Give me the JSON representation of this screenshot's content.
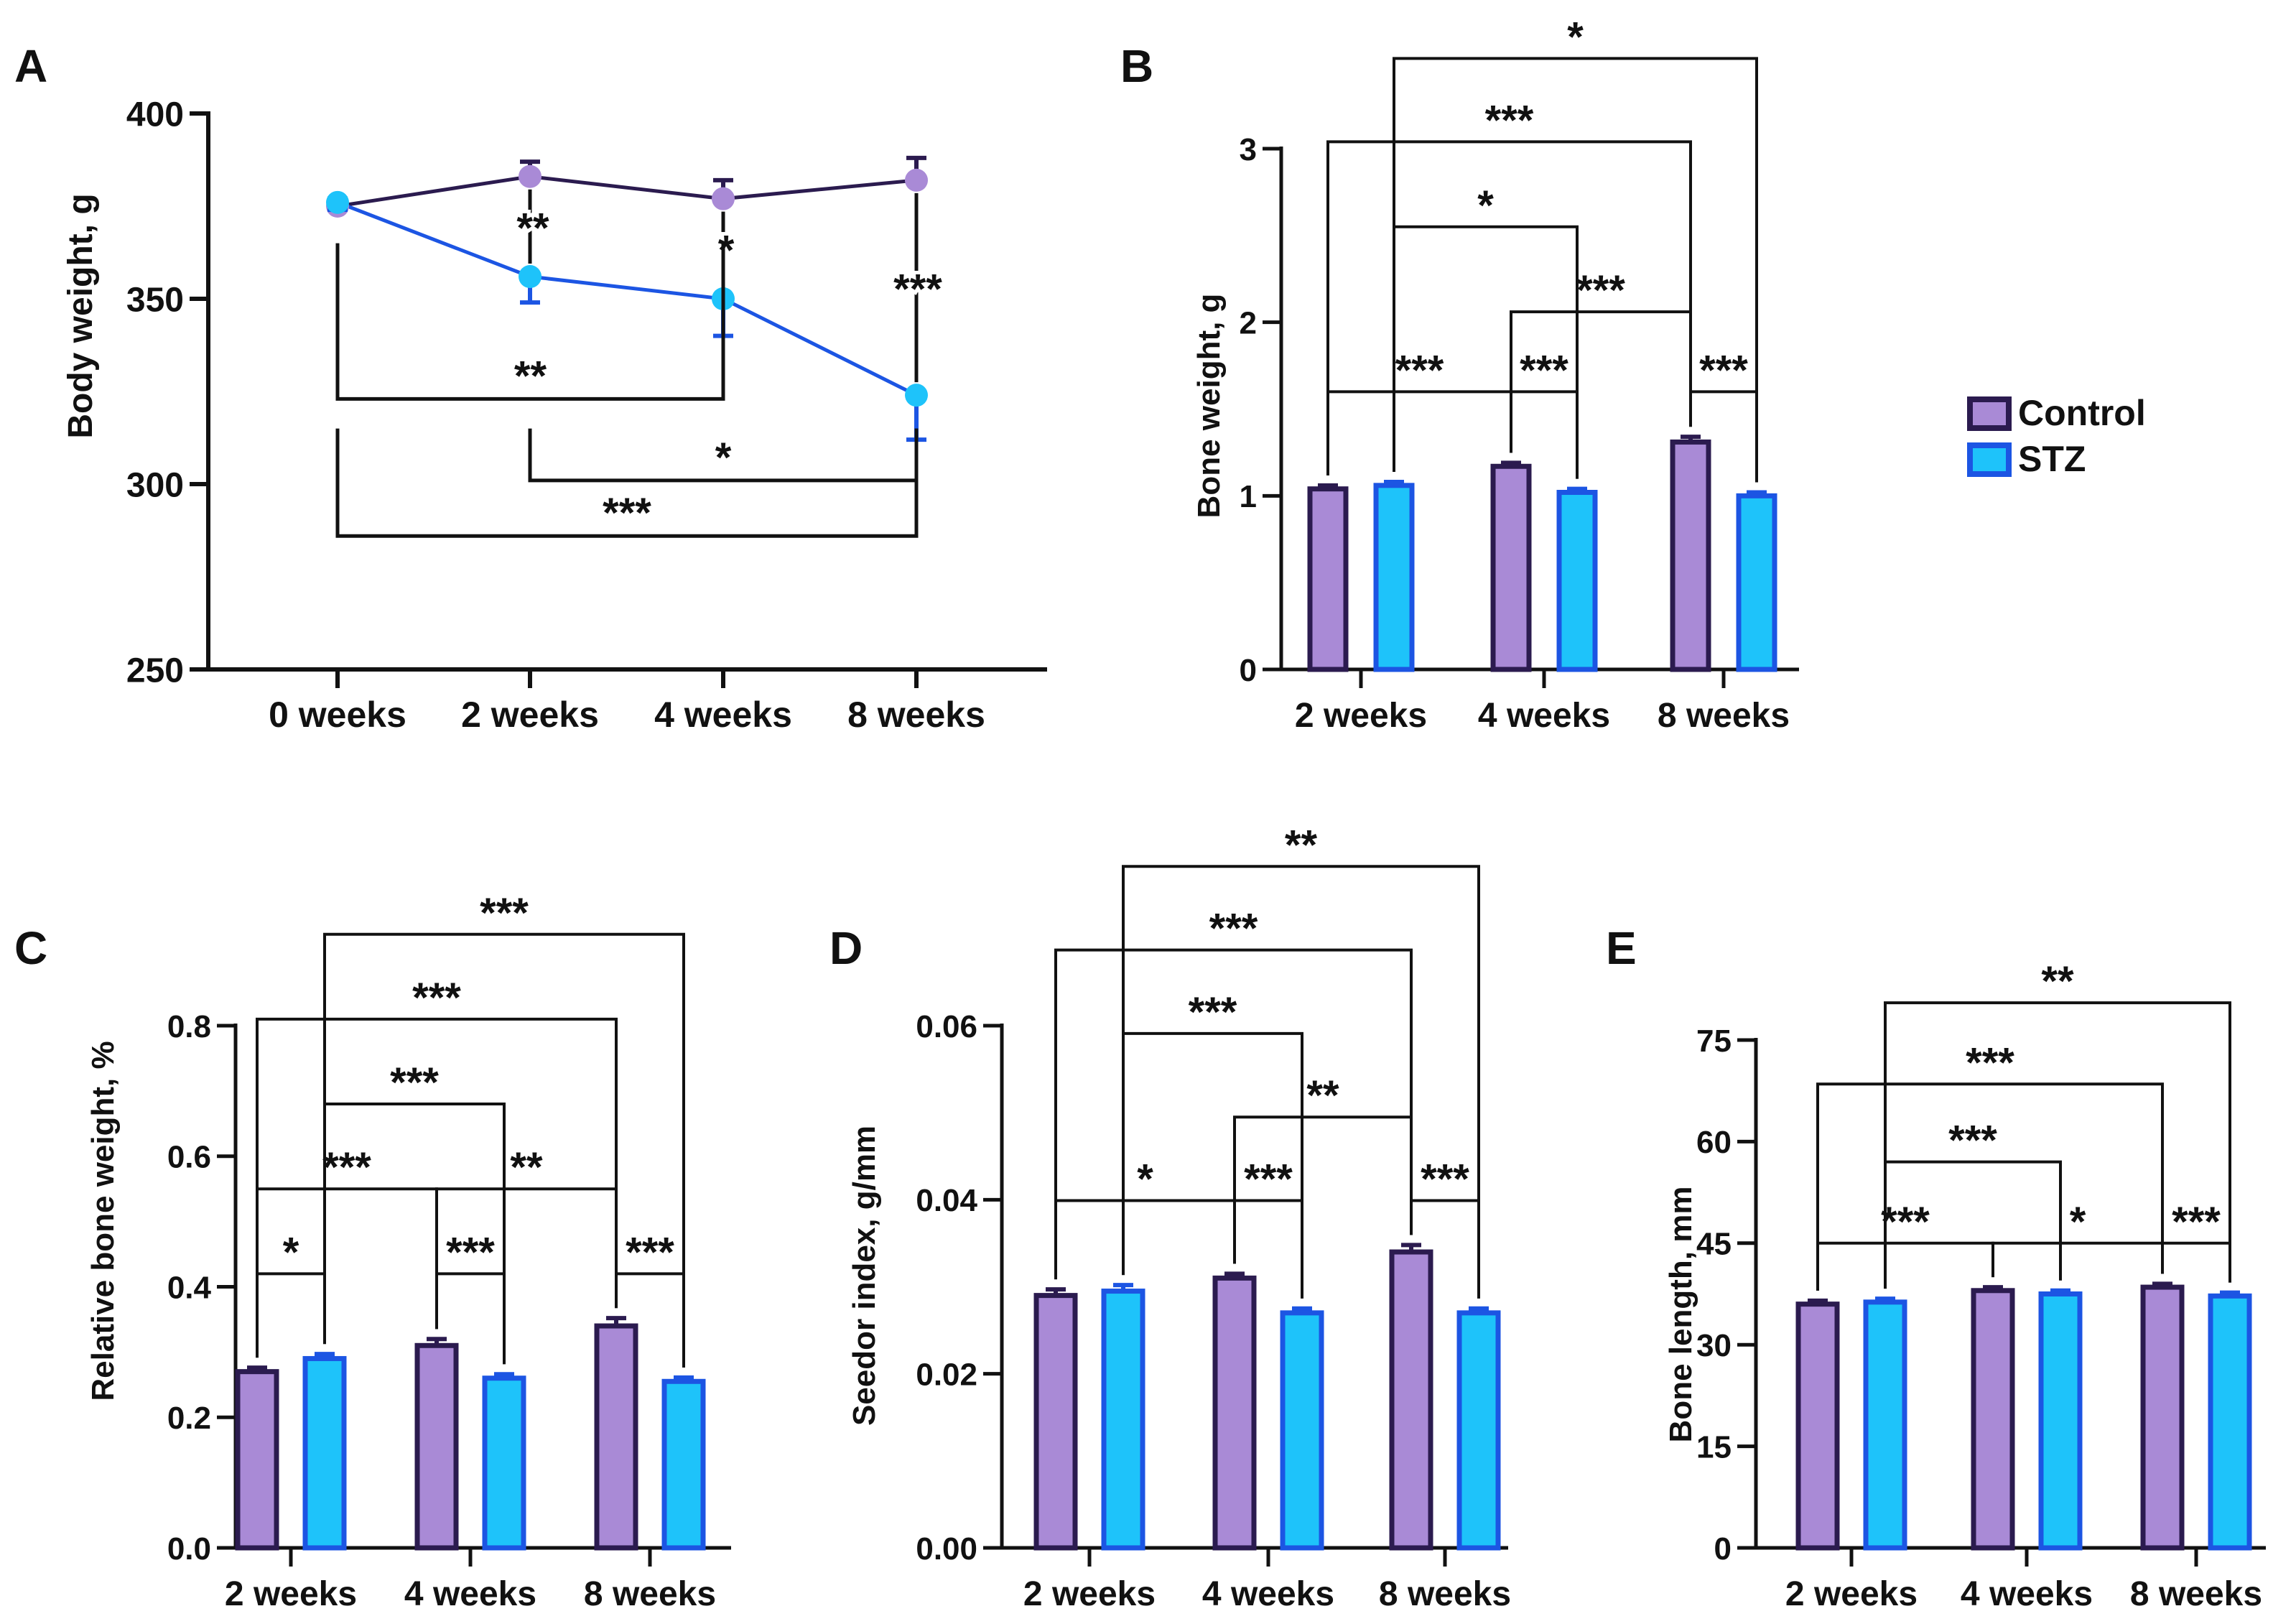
{
  "colors": {
    "control_fill": "#a98ad6",
    "control_edge": "#2b1b4f",
    "stz_fill": "#1ec3fa",
    "stz_edge": "#1c55e3",
    "axis": "#111111"
  },
  "legend": {
    "control": "Control",
    "stz": "STZ"
  },
  "chart_data": [
    {
      "id": "A",
      "panel_label": "A",
      "type": "line",
      "ylabel": "Body weight, g",
      "categories": [
        "0 weeks",
        "2 weeks",
        "4 weeks",
        "8 weeks"
      ],
      "ylim": [
        250,
        400
      ],
      "yticks": [
        "250",
        "300",
        "350",
        "400"
      ],
      "ytick_values": [
        250,
        300,
        350,
        400
      ],
      "series": [
        {
          "name": "Control",
          "values": [
            375,
            383,
            377,
            382
          ],
          "errors": [
            2,
            4,
            5,
            6
          ]
        },
        {
          "name": "STZ",
          "values": [
            376,
            356,
            350,
            324
          ],
          "errors": [
            2,
            7,
            10,
            12
          ]
        }
      ],
      "annotations": [
        {
          "kind": "vertical",
          "cat": 1,
          "y_top": 383,
          "y_bottom": 356,
          "text": "**"
        },
        {
          "kind": "vertical",
          "cat": 2,
          "y_top": 377,
          "y_bottom": 350,
          "text": "*"
        },
        {
          "kind": "vertical",
          "cat": 3,
          "y_top": 382,
          "y_bottom": 324,
          "text": "***"
        },
        {
          "kind": "bracket",
          "from": 0,
          "to": 2,
          "y_top": 365,
          "y_bottom": 323,
          "text": "**"
        },
        {
          "kind": "bracket",
          "from": 1,
          "to": 3,
          "y_top": 315,
          "y_bottom": 301,
          "text": "*"
        },
        {
          "kind": "bracket",
          "from": 0,
          "to": 3,
          "y_top": 315,
          "y_bottom": 286,
          "text": "***"
        }
      ]
    },
    {
      "id": "B",
      "panel_label": "B",
      "type": "bar",
      "ylabel": "Bone weight, g",
      "categories": [
        "2 weeks",
        "4 weeks",
        "8 weeks"
      ],
      "ylim": [
        0,
        3
      ],
      "yticks": [
        "0",
        "1",
        "2",
        "3"
      ],
      "ytick_values": [
        0,
        1,
        2,
        3
      ],
      "series": [
        {
          "name": "Control",
          "values": [
            1.04,
            1.17,
            1.31
          ],
          "errors": [
            0.02,
            0.02,
            0.03
          ]
        },
        {
          "name": "STZ",
          "values": [
            1.06,
            1.02,
            1.0
          ],
          "errors": [
            0.02,
            0.02,
            0.02
          ]
        }
      ],
      "annotations": [
        {
          "x1": [
            0,
            0
          ],
          "x2": [
            1,
            0
          ],
          "y": 1.6,
          "text": "***"
        },
        {
          "x1": [
            1,
            0
          ],
          "x2": [
            1,
            1
          ],
          "y": 1.6,
          "text": "***"
        },
        {
          "x1": [
            2,
            0
          ],
          "x2": [
            2,
            1
          ],
          "y": 1.6,
          "text": "***"
        },
        {
          "x1": [
            1,
            0
          ],
          "x2": [
            2,
            0
          ],
          "y": 2.06,
          "text": "***"
        },
        {
          "x1": [
            0,
            1
          ],
          "x2": [
            1,
            1
          ],
          "y": 2.55,
          "text": "*"
        },
        {
          "x1": [
            0,
            0
          ],
          "x2": [
            2,
            0
          ],
          "y": 3.04,
          "text": "***"
        },
        {
          "x1": [
            0,
            1
          ],
          "x2": [
            2,
            1
          ],
          "y": 3.52,
          "text": "*"
        }
      ]
    },
    {
      "id": "C",
      "panel_label": "C",
      "type": "bar",
      "ylabel": "Relative bone weight, %",
      "categories": [
        "2 weeks",
        "4 weeks",
        "8 weeks"
      ],
      "ylim": [
        0,
        0.8
      ],
      "yticks": [
        "0.0",
        "0.2",
        "0.4",
        "0.6",
        "0.8"
      ],
      "ytick_values": [
        0,
        0.2,
        0.4,
        0.6,
        0.8
      ],
      "series": [
        {
          "name": "Control",
          "values": [
            0.27,
            0.31,
            0.34
          ],
          "errors": [
            0.006,
            0.01,
            0.012
          ]
        },
        {
          "name": "STZ",
          "values": [
            0.29,
            0.26,
            0.255
          ],
          "errors": [
            0.007,
            0.006,
            0.006
          ]
        }
      ],
      "annotations": [
        {
          "x1": [
            0,
            0
          ],
          "x2": [
            0,
            1
          ],
          "y": 0.42,
          "text": "*"
        },
        {
          "x1": [
            1,
            0
          ],
          "x2": [
            1,
            1
          ],
          "y": 0.42,
          "text": "***"
        },
        {
          "x1": [
            2,
            0
          ],
          "x2": [
            2,
            1
          ],
          "y": 0.42,
          "text": "***"
        },
        {
          "x1": [
            0,
            0
          ],
          "x2": [
            1,
            0
          ],
          "y": 0.55,
          "text": "***"
        },
        {
          "x1": [
            1,
            0
          ],
          "x2": [
            2,
            0
          ],
          "y": 0.55,
          "text": "**"
        },
        {
          "x1": [
            0,
            1
          ],
          "x2": [
            1,
            1
          ],
          "y": 0.68,
          "text": "***"
        },
        {
          "x1": [
            0,
            0
          ],
          "x2": [
            2,
            0
          ],
          "y": 0.81,
          "text": "***"
        },
        {
          "x1": [
            0,
            1
          ],
          "x2": [
            2,
            1
          ],
          "y": 0.94,
          "text": "***"
        }
      ]
    },
    {
      "id": "D",
      "panel_label": "D",
      "type": "bar",
      "ylabel": "Seedor index, g/mm",
      "categories": [
        "2 weeks",
        "4 weeks",
        "8 weeks"
      ],
      "ylim": [
        0,
        0.06
      ],
      "yticks": [
        "0.00",
        "0.02",
        "0.04",
        "0.06"
      ],
      "ytick_values": [
        0,
        0.02,
        0.04,
        0.06
      ],
      "series": [
        {
          "name": "Control",
          "values": [
            0.029,
            0.031,
            0.034
          ],
          "errors": [
            0.0007,
            0.0005,
            0.0008
          ]
        },
        {
          "name": "STZ",
          "values": [
            0.0295,
            0.027,
            0.027
          ],
          "errors": [
            0.0007,
            0.0005,
            0.0005
          ]
        }
      ],
      "annotations": [
        {
          "x1": [
            0,
            0
          ],
          "x2": [
            1,
            0
          ],
          "y": 0.0399,
          "text": "*"
        },
        {
          "x1": [
            1,
            0
          ],
          "x2": [
            1,
            1
          ],
          "y": 0.0399,
          "text": "***"
        },
        {
          "x1": [
            2,
            0
          ],
          "x2": [
            2,
            1
          ],
          "y": 0.0399,
          "text": "***"
        },
        {
          "x1": [
            1,
            0
          ],
          "x2": [
            2,
            0
          ],
          "y": 0.0495,
          "text": "**"
        },
        {
          "x1": [
            0,
            1
          ],
          "x2": [
            1,
            1
          ],
          "y": 0.0591,
          "text": "***"
        },
        {
          "x1": [
            0,
            0
          ],
          "x2": [
            2,
            0
          ],
          "y": 0.0687,
          "text": "***"
        },
        {
          "x1": [
            0,
            1
          ],
          "x2": [
            2,
            1
          ],
          "y": 0.0783,
          "text": "**"
        }
      ]
    },
    {
      "id": "E",
      "panel_label": "E",
      "type": "bar",
      "ylabel": "Bone length, mm",
      "categories": [
        "2 weeks",
        "4 weeks",
        "8 weeks"
      ],
      "ylim": [
        0,
        75
      ],
      "yticks": [
        "0",
        "15",
        "30",
        "45",
        "60",
        "75"
      ],
      "ytick_values": [
        0,
        15,
        30,
        45,
        60,
        75
      ],
      "series": [
        {
          "name": "Control",
          "values": [
            36,
            38,
            38.5
          ],
          "errors": [
            0.5,
            0.5,
            0.5
          ]
        },
        {
          "name": "STZ",
          "values": [
            36.3,
            37.5,
            37.2
          ],
          "errors": [
            0.5,
            0.5,
            0.5
          ]
        }
      ],
      "annotations": [
        {
          "x1": [
            0,
            0
          ],
          "x2": [
            1,
            0
          ],
          "y": 45,
          "text": "***"
        },
        {
          "x1": [
            1,
            0
          ],
          "x2": [
            2,
            0
          ],
          "y": 45,
          "text": "*"
        },
        {
          "x1": [
            2,
            0
          ],
          "x2": [
            2,
            1
          ],
          "y": 45,
          "text": "***"
        },
        {
          "x1": [
            0,
            1
          ],
          "x2": [
            1,
            1
          ],
          "y": 57,
          "text": "***"
        },
        {
          "x1": [
            0,
            0
          ],
          "x2": [
            2,
            0
          ],
          "y": 68.5,
          "text": "***"
        },
        {
          "x1": [
            0,
            1
          ],
          "x2": [
            2,
            1
          ],
          "y": 80.5,
          "text": "**"
        }
      ]
    }
  ]
}
